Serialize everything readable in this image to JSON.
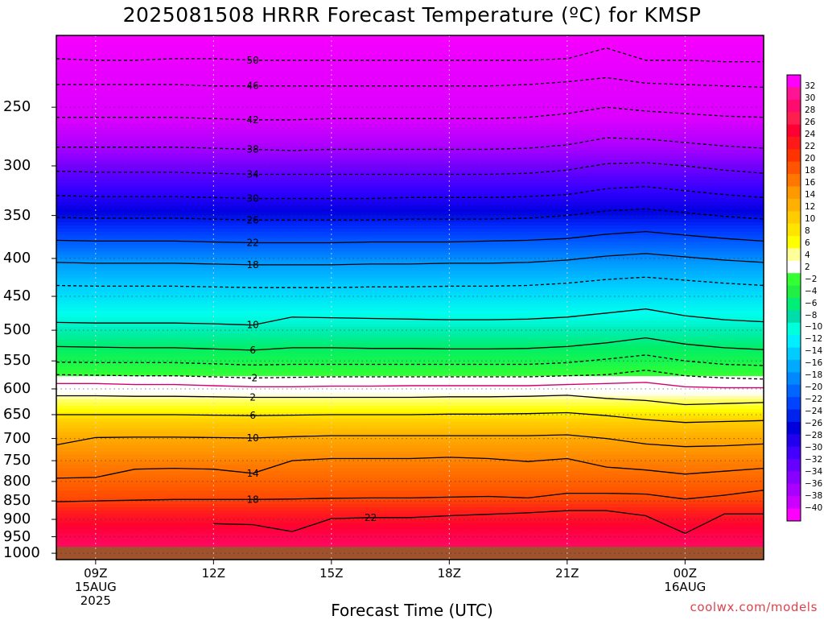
{
  "chart_data": {
    "type": "heatmap",
    "title": "2025081508 HRRR Forecast Temperature (ºC) for KMSP",
    "xlabel": "Forecast Time (UTC)",
    "ylabel": "",
    "y_axis": {
      "scale": "log",
      "ylim": [
        1020,
        200
      ],
      "ticks": [
        250,
        300,
        350,
        400,
        450,
        500,
        550,
        600,
        650,
        700,
        750,
        800,
        850,
        900,
        950,
        1000
      ]
    },
    "x_axis": {
      "xlim_hours": [
        8,
        26
      ],
      "ticks": [
        {
          "hour": 9,
          "lines": [
            "09Z",
            "15AUG",
            "2025"
          ]
        },
        {
          "hour": 12,
          "lines": [
            "12Z"
          ]
        },
        {
          "hour": 15,
          "lines": [
            "15Z"
          ]
        },
        {
          "hour": 18,
          "lines": [
            "18Z"
          ]
        },
        {
          "hour": 21,
          "lines": [
            "21Z"
          ]
        },
        {
          "hour": 24,
          "lines": [
            "00Z",
            "16AUG"
          ]
        }
      ]
    },
    "grid": true,
    "ground_pressure": 980,
    "ground_color": "#a0522d",
    "x_hours": [
      8,
      9,
      10,
      11,
      12,
      13,
      14,
      15,
      16,
      17,
      18,
      19,
      20,
      21,
      22,
      23,
      24,
      25,
      26
    ],
    "isotherms": [
      {
        "temp": 50,
        "label": "50",
        "pressure": [
          215,
          216,
          216,
          215,
          215,
          216,
          216,
          216,
          216,
          216,
          216,
          216,
          216,
          215,
          208,
          216,
          216,
          217,
          217
        ]
      },
      {
        "temp": 46,
        "label": "46",
        "pressure": [
          233,
          233,
          233,
          233,
          234,
          234,
          234,
          234,
          234,
          234,
          234,
          234,
          233,
          231,
          228,
          232,
          233,
          234,
          235
        ]
      },
      {
        "temp": 42,
        "label": "42",
        "pressure": [
          258,
          258,
          258,
          258,
          259,
          260,
          260,
          259,
          259,
          259,
          259,
          259,
          258,
          255,
          250,
          253,
          255,
          257,
          258
        ]
      },
      {
        "temp": 38,
        "label": "38",
        "pressure": [
          283,
          283,
          283,
          283,
          284,
          285,
          286,
          285,
          285,
          285,
          285,
          285,
          284,
          281,
          275,
          276,
          279,
          282,
          284
        ]
      },
      {
        "temp": 34,
        "label": "34",
        "pressure": [
          305,
          306,
          306,
          306,
          307,
          308,
          308,
          308,
          308,
          308,
          308,
          308,
          307,
          304,
          298,
          297,
          300,
          304,
          307
        ]
      },
      {
        "temp": 30,
        "label": "30",
        "pressure": [
          329,
          330,
          330,
          330,
          331,
          332,
          332,
          332,
          332,
          331,
          331,
          331,
          330,
          328,
          322,
          320,
          324,
          328,
          331
        ]
      },
      {
        "temp": 26,
        "label": "26",
        "pressure": [
          352,
          353,
          353,
          353,
          354,
          355,
          355,
          355,
          355,
          354,
          354,
          354,
          353,
          350,
          345,
          343,
          347,
          351,
          354
        ]
      },
      {
        "temp": 22,
        "label": "22",
        "pressure": [
          378,
          379,
          379,
          379,
          380,
          381,
          381,
          381,
          380,
          380,
          380,
          379,
          378,
          376,
          371,
          368,
          372,
          376,
          379
        ]
      },
      {
        "temp": 18,
        "label": "18",
        "pressure": [
          405,
          406,
          406,
          406,
          407,
          408,
          408,
          408,
          407,
          407,
          406,
          406,
          405,
          402,
          397,
          394,
          398,
          402,
          405
        ]
      },
      {
        "temp": 14,
        "label": "",
        "pressure": [
          435,
          436,
          436,
          436,
          437,
          438,
          438,
          438,
          437,
          437,
          436,
          436,
          435,
          432,
          427,
          424,
          428,
          432,
          435
        ]
      },
      {
        "temp": 10,
        "label": "10",
        "pressure": [
          488,
          489,
          489,
          489,
          490,
          492,
          480,
          481,
          482,
          483,
          484,
          484,
          483,
          480,
          474,
          468,
          478,
          484,
          487
        ]
      },
      {
        "temp": 6,
        "label": "6",
        "pressure": [
          526,
          527,
          528,
          528,
          530,
          532,
          528,
          528,
          529,
          529,
          530,
          530,
          529,
          526,
          520,
          512,
          522,
          528,
          531
        ]
      },
      {
        "temp": 2,
        "label": "",
        "pressure": [
          552,
          553,
          553,
          553,
          555,
          557,
          556,
          556,
          556,
          556,
          556,
          556,
          556,
          553,
          547,
          540,
          550,
          556,
          558
        ]
      },
      {
        "temp": -2,
        "label": "-2",
        "pressure": [
          574,
          575,
          576,
          576,
          578,
          580,
          579,
          578,
          578,
          578,
          578,
          578,
          578,
          576,
          574,
          566,
          576,
          580,
          582
        ]
      },
      {
        "temp": 0,
        "label": "",
        "pressure": [
          590,
          590,
          592,
          592,
          594,
          596,
          596,
          595,
          595,
          594,
          594,
          594,
          594,
          592,
          590,
          588,
          596,
          598,
          598
        ]
      },
      {
        "temp": 2,
        "label": "2",
        "pressure": [
          613,
          613,
          614,
          614,
          615,
          616,
          616,
          616,
          616,
          616,
          615,
          615,
          614,
          612,
          618,
          622,
          630,
          628,
          626
        ]
      },
      {
        "temp": 6,
        "label": "6",
        "pressure": [
          650,
          650,
          650,
          650,
          651,
          652,
          651,
          650,
          650,
          650,
          649,
          649,
          648,
          646,
          652,
          660,
          666,
          664,
          662
        ]
      },
      {
        "temp": 10,
        "label": "10",
        "pressure": [
          714,
          698,
          697,
          697,
          698,
          699,
          696,
          694,
          694,
          694,
          694,
          694,
          694,
          692,
          700,
          712,
          718,
          716,
          712
        ]
      },
      {
        "temp": 14,
        "label": "14",
        "pressure": [
          792,
          790,
          770,
          768,
          770,
          780,
          750,
          745,
          745,
          745,
          742,
          745,
          752,
          745,
          765,
          772,
          782,
          775,
          768
        ]
      },
      {
        "temp": 18,
        "label": "18",
        "pressure": [
          852,
          850,
          848,
          846,
          846,
          846,
          845,
          843,
          842,
          842,
          840,
          838,
          842,
          830,
          830,
          832,
          845,
          835,
          822
        ]
      },
      {
        "temp": 22,
        "label": "22",
        "pressure": [
          null,
          null,
          null,
          null,
          912,
          915,
          935,
          898,
          895,
          895,
          890,
          886,
          882,
          876,
          876,
          890,
          940,
          885,
          885
        ]
      }
    ],
    "colorbar": {
      "labels": [
        "32",
        "30",
        "28",
        "26",
        "24",
        "22",
        "20",
        "18",
        "16",
        "14",
        "12",
        "10",
        "8",
        "6",
        "4",
        "2",
        "-2",
        "-4",
        "-6",
        "-8",
        "-10",
        "-12",
        "-14",
        "-16",
        "-18",
        "-20",
        "-22",
        "-24",
        "-26",
        "-28",
        "-30",
        "-32",
        "-34",
        "-36",
        "-38",
        "-40"
      ],
      "colors": [
        "#ff00ff",
        "#ff1493",
        "#ff0a6e",
        "#ff1f4f",
        "#ff0033",
        "#ff1a1a",
        "#ff3300",
        "#ff5500",
        "#ff7700",
        "#ff9900",
        "#ffb000",
        "#ffcc00",
        "#ffe400",
        "#ffff00",
        "#ffff99",
        "#ffffff",
        "#33ff33",
        "#22ee44",
        "#00ee77",
        "#00ddaa",
        "#00ffdd",
        "#00eeff",
        "#00ccff",
        "#00aaff",
        "#0088ff",
        "#0066ff",
        "#0044ff",
        "#0022ee",
        "#0000dd",
        "#2200ee",
        "#4400ff",
        "#6600ff",
        "#8800ff",
        "#aa00ff",
        "#cc00ff",
        "#ff00ff"
      ]
    }
  },
  "credit": "coolwx.com/models"
}
